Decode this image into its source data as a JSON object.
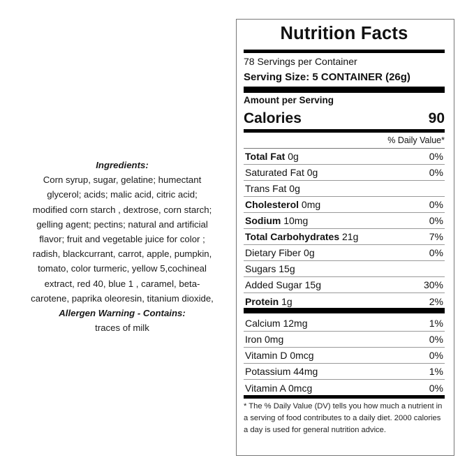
{
  "ingredients": {
    "heading": "Ingredients:",
    "lines": [
      "Corn syrup, sugar, gelatine; humectant",
      "glycerol; acids; malic acid, citric acid;",
      "modified corn starch , dextrose, corn starch;",
      "gelling agent; pectins; natural and artificial",
      "flavor; fruit and vegetable juice for color ;",
      "radish, blackcurrant, carrot, apple, pumpkin,",
      "tomato, color turmeric, yellow 5,cochineal",
      "extract, red 40, blue 1 , caramel, beta-",
      "carotene, paprika oleoresin, titanium dioxide,"
    ],
    "allergen_heading": "Allergen Warning - Contains:",
    "allergen": "traces of milk"
  },
  "label": {
    "title": "Nutrition Facts",
    "servings": "78 Servings per Container",
    "serving_size": "Serving Size: 5 CONTAINER (26g)",
    "amount_per_serving": "Amount per Serving",
    "calories_label": "Calories",
    "calories_value": "90",
    "dv_header": "% Daily Value*",
    "nutrients": [
      {
        "name": "Total Fat",
        "amount": "0g",
        "dv": "0%",
        "bold": true
      },
      {
        "name": "Saturated Fat",
        "amount": "0g",
        "dv": "0%",
        "bold": false
      },
      {
        "name": "Trans Fat",
        "amount": "0g",
        "dv": "",
        "bold": false
      },
      {
        "name": "Cholesterol",
        "amount": "0mg",
        "dv": "0%",
        "bold": true
      },
      {
        "name": "Sodium",
        "amount": "10mg",
        "dv": "0%",
        "bold": true
      },
      {
        "name": "Total Carbohydrates",
        "amount": "21g",
        "dv": "7%",
        "bold": true
      },
      {
        "name": "Dietary Fiber",
        "amount": "0g",
        "dv": "0%",
        "bold": false
      },
      {
        "name": "Sugars",
        "amount": "15g",
        "dv": "",
        "bold": false
      },
      {
        "name": "Added Sugar",
        "amount": "15g",
        "dv": "30%",
        "bold": false
      },
      {
        "name": "Protein",
        "amount": "1g",
        "dv": "2%",
        "bold": true
      }
    ],
    "vitamins": [
      {
        "name": "Calcium",
        "amount": "12mg",
        "dv": "1%"
      },
      {
        "name": "Iron",
        "amount": "0mg",
        "dv": "0%"
      },
      {
        "name": "Vitamin D",
        "amount": "0mcg",
        "dv": "0%"
      },
      {
        "name": "Potassium",
        "amount": "44mg",
        "dv": "1%"
      },
      {
        "name": "Vitamin A",
        "amount": "0mcg",
        "dv": "0%"
      }
    ],
    "footnote": "* The % Daily Value (DV) tells you how much a nutrient in a serving of food contributes to a daily diet. 2000 calories a day is used for general nutrition advice."
  }
}
